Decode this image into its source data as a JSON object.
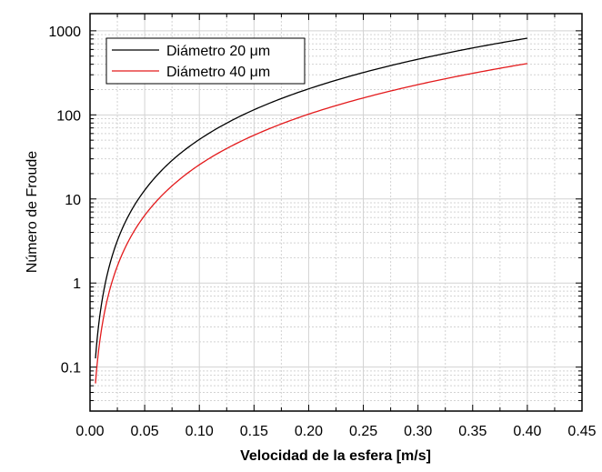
{
  "chart_data": {
    "type": "line",
    "title": "",
    "xlabel": "Velocidad de la esfera [m/s]",
    "ylabel": "Número de Froude",
    "xlim": [
      0.0,
      0.45
    ],
    "ylim": [
      0.03,
      1600
    ],
    "y_scale": "log",
    "grid": true,
    "legend_position": "top-left",
    "x_ticks": [
      "0.00",
      "0.05",
      "0.10",
      "0.15",
      "0.20",
      "0.25",
      "0.30",
      "0.35",
      "0.40",
      "0.45"
    ],
    "y_ticks": [
      "0.1",
      "1",
      "10",
      "100",
      "1000"
    ],
    "series": [
      {
        "name": "Diámetro 20 μm",
        "color": "#000000",
        "x": [
          0.005,
          0.01,
          0.02,
          0.03,
          0.04,
          0.05,
          0.075,
          0.1,
          0.15,
          0.2,
          0.25,
          0.3,
          0.35,
          0.4
        ],
        "y": [
          0.127,
          0.51,
          2.04,
          4.59,
          8.16,
          12.7,
          28.7,
          51.0,
          115,
          204,
          319,
          459,
          625,
          816
        ]
      },
      {
        "name": "Diámetro 40 μm",
        "color": "#e31a1c",
        "x": [
          0.005,
          0.01,
          0.02,
          0.03,
          0.04,
          0.05,
          0.075,
          0.1,
          0.15,
          0.2,
          0.25,
          0.3,
          0.35,
          0.4
        ],
        "y": [
          0.064,
          0.255,
          1.02,
          2.29,
          4.08,
          6.37,
          14.3,
          25.5,
          57.3,
          102,
          159,
          229,
          312,
          408
        ]
      }
    ]
  }
}
